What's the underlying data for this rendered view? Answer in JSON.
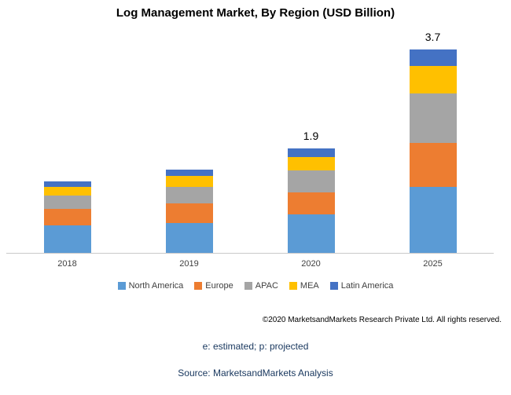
{
  "title": "Log Management Market, By Region (USD Billion)",
  "footer": {
    "copyright": "©2020 MarketsandMarkets Research Private Ltd. All rights reserved.",
    "note": "e: estimated; p: projected",
    "source": "Source: MarketsandMarkets Analysis"
  },
  "chart_data": {
    "type": "bar",
    "stacked": true,
    "title": "Log Management Market, By Region (USD Billion)",
    "categories": [
      "2018",
      "2019",
      "2020",
      "2025"
    ],
    "series": [
      {
        "name": "North America",
        "color": "#5B9BD5",
        "values": [
          0.5,
          0.55,
          0.7,
          1.2
        ]
      },
      {
        "name": "Europe",
        "color": "#ED7D31",
        "values": [
          0.3,
          0.35,
          0.4,
          0.8
        ]
      },
      {
        "name": "APAC",
        "color": "#A5A5A5",
        "values": [
          0.25,
          0.3,
          0.4,
          0.9
        ]
      },
      {
        "name": "MEA",
        "color": "#FFC000",
        "values": [
          0.15,
          0.2,
          0.25,
          0.5
        ]
      },
      {
        "name": "Latin America",
        "color": "#4472C4",
        "values": [
          0.1,
          0.12,
          0.15,
          0.3
        ]
      }
    ],
    "totals": [
      1.3,
      1.52,
      1.9,
      3.7
    ],
    "total_labels": [
      "",
      "",
      "1.9",
      "3.7"
    ],
    "xlabel": "",
    "ylabel": "",
    "ylim": [
      0,
      4
    ],
    "grid": false,
    "legend_position": "bottom",
    "units": "USD Billion"
  }
}
